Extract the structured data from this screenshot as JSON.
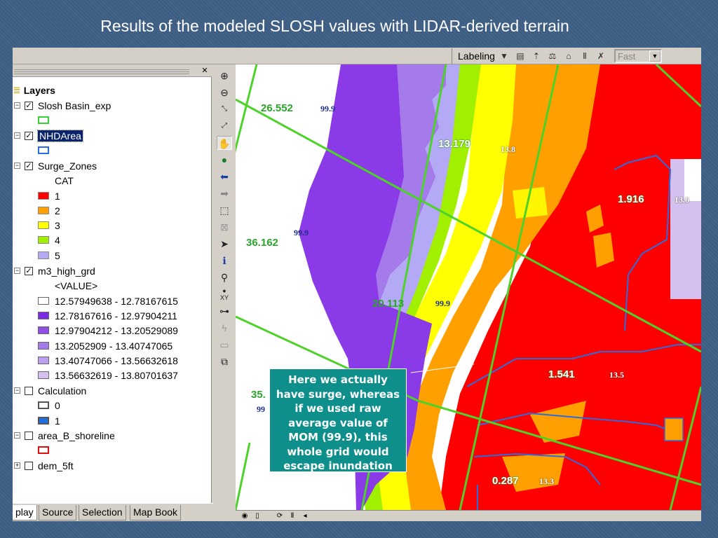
{
  "slide_title": "Results of the modeled SLOSH values with LIDAR-derived terrain",
  "toolbar": {
    "labeling": "Labeling",
    "speed_value": "Fast"
  },
  "toc": {
    "root_label": "Layers",
    "items": [
      {
        "label": "Slosh Basin_exp",
        "checked": true,
        "expanded": true
      },
      {
        "label": "NHDArea",
        "checked": true,
        "expanded": true,
        "selected": true
      },
      {
        "label": "Surge_Zones",
        "checked": true,
        "expanded": true
      },
      {
        "label": "m3_high_grd",
        "checked": true,
        "expanded": true
      },
      {
        "label": "Calculation",
        "checked": false,
        "expanded": true
      },
      {
        "label": "area_B_shoreline",
        "checked": false,
        "expanded": true
      },
      {
        "label": "dem_5ft",
        "checked": false,
        "expanded": false
      }
    ],
    "surge_field": "CAT",
    "surge_classes": [
      {
        "label": "1",
        "color": "#ff0000"
      },
      {
        "label": "2",
        "color": "#ffa000"
      },
      {
        "label": "3",
        "color": "#ffff00"
      },
      {
        "label": "4",
        "color": "#a0f000"
      },
      {
        "label": "5",
        "color": "#b4a9f4"
      }
    ],
    "grid_field": "<VALUE>",
    "grid_classes": [
      {
        "label": "12.57949638 - 12.78167615",
        "color": "#ffffff"
      },
      {
        "label": "12.78167616 - 12.97904211",
        "color": "#7b2be2"
      },
      {
        "label": "12.97904212 - 13.20529089",
        "color": "#9050e6"
      },
      {
        "label": "13.2052909 - 13.40747065",
        "color": "#a57aea"
      },
      {
        "label": "13.40747066 - 13.56632618",
        "color": "#bd9dee"
      },
      {
        "label": "13.56632619 - 13.80701637",
        "color": "#d6c0f0"
      }
    ],
    "calc_classes": [
      {
        "label": "0",
        "color": "#ffffff"
      },
      {
        "label": "1",
        "color": "#1e6fe0"
      }
    ],
    "colors": {
      "slosh_outline": "#38d038",
      "nhd_outline": "#2a6de0",
      "shoreline_outline": "#e01010"
    }
  },
  "tabs": [
    "play",
    "Source",
    "Selection",
    "Map Book"
  ],
  "map_labels": [
    {
      "text": "26.552",
      "kind": "big"
    },
    {
      "text": "99.9",
      "kind": "small"
    },
    {
      "text": "13.179",
      "kind": "big-white"
    },
    {
      "text": "13.8",
      "kind": "small-white"
    },
    {
      "text": "1.916",
      "kind": "big-white"
    },
    {
      "text": "13.6",
      "kind": "small-white"
    },
    {
      "text": "36.162",
      "kind": "big"
    },
    {
      "text": "99.9",
      "kind": "small"
    },
    {
      "text": "20.113",
      "kind": "big"
    },
    {
      "text": "99.9",
      "kind": "small"
    },
    {
      "text": "1.541",
      "kind": "big-white"
    },
    {
      "text": "13.5",
      "kind": "small-white"
    },
    {
      "text": "35.",
      "kind": "big"
    },
    {
      "text": "99",
      "kind": "small"
    },
    {
      "text": "0.287",
      "kind": "big-white"
    },
    {
      "text": "13.3",
      "kind": "small-white"
    }
  ],
  "callout": "Here we actually have surge, whereas if we used raw average value of MOM (99.9), this whole grid would escape inundation"
}
